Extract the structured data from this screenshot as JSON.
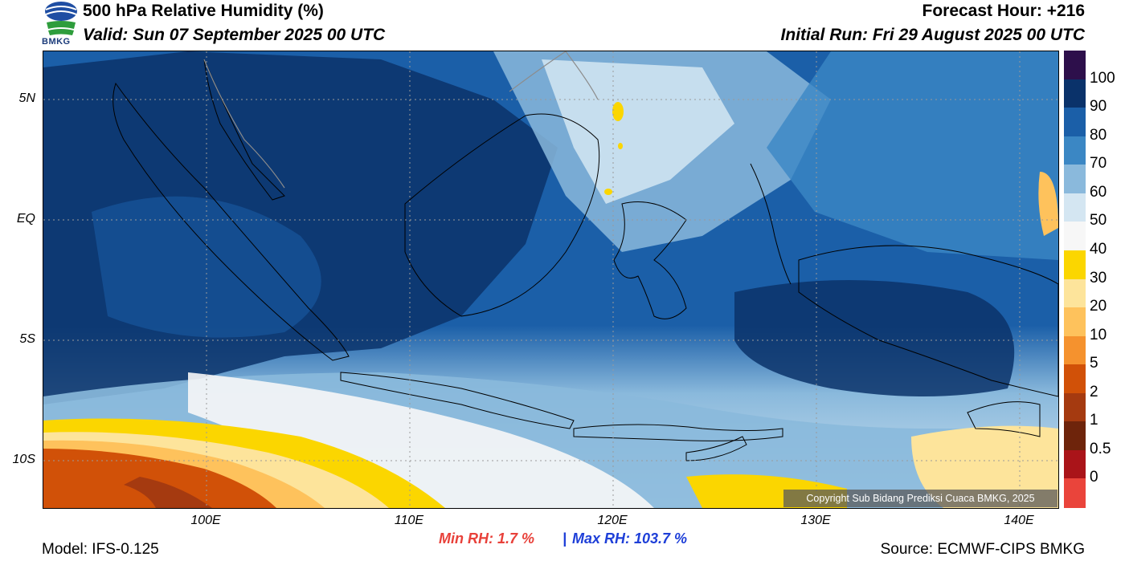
{
  "header": {
    "title": "500 hPa Relative Humidity (%)",
    "valid": "Valid: Sun 07 September 2025 00 UTC",
    "forecast_hour": "Forecast Hour: +216",
    "initial_run": "Initial Run: Fri 29 August 2025 00 UTC",
    "logo_text": "BMKG"
  },
  "map": {
    "lat_labels": [
      "5N",
      "EQ",
      "5S",
      "10S"
    ],
    "lon_labels": [
      "100E",
      "110E",
      "120E",
      "130E",
      "140E"
    ],
    "lat_range": [
      -12,
      7
    ],
    "lon_range": [
      92,
      142
    ]
  },
  "colorbar": {
    "labels": [
      "100",
      "90",
      "80",
      "70",
      "60",
      "50",
      "40",
      "30",
      "20",
      "10",
      "5",
      "2",
      "1",
      "0.5",
      "0"
    ],
    "colors": [
      "#2d0f4b",
      "#0a326a",
      "#1b5fa8",
      "#3b87c4",
      "#8ab9dc",
      "#d4e6f2",
      "#f7f7f7",
      "#fbd600",
      "#fde49b",
      "#fec25c",
      "#f5922e",
      "#d15108",
      "#a53a10",
      "#6e240b",
      "#aa1419",
      "#ea443b"
    ]
  },
  "footer": {
    "min_rh": "Min RH:   1.7 %",
    "separator": "|",
    "max_rh": "Max RH: 103.7 %",
    "model": "Model: IFS-0.125",
    "source": "Source: ECMWF-CIPS BMKG",
    "copyright": "Copyright Sub Bidang Prediksi Cuaca BMKG, 2025"
  }
}
